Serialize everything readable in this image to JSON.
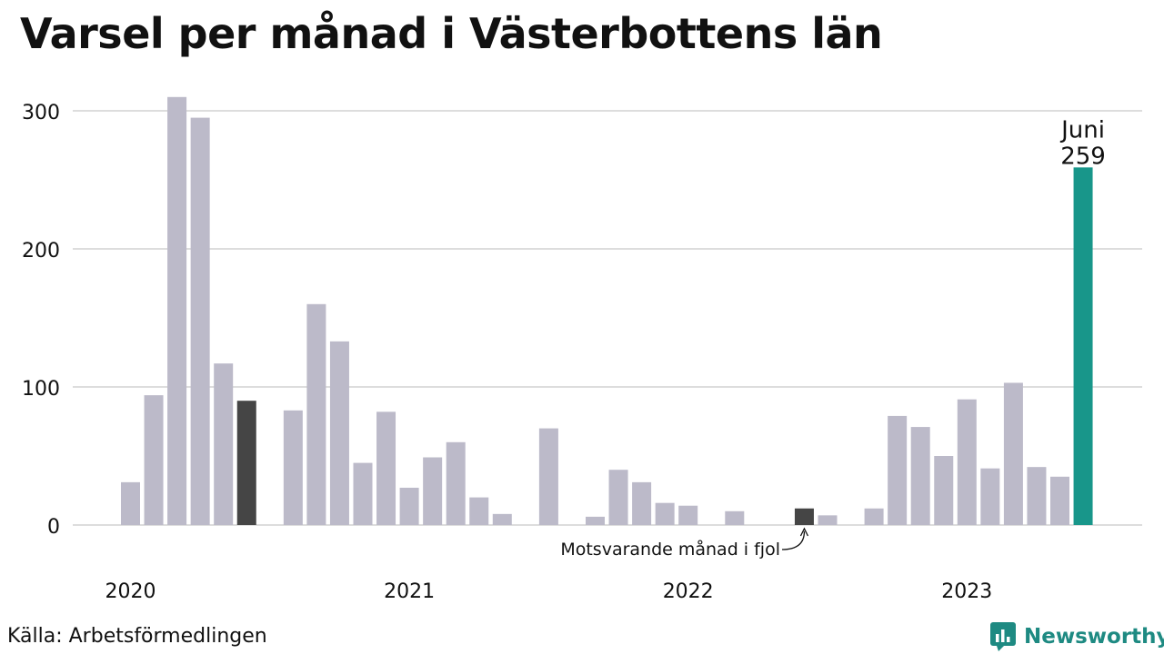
{
  "title": "Varsel per månad i Västerbottens län",
  "source": "Källa: Arbetsförmedlingen",
  "brand": {
    "name": "Newsworthy",
    "icon": "newsworthy-logo-icon"
  },
  "colors": {
    "default_bar": "#bcbac9",
    "highlight_bar": "#18968a",
    "comparison_bar": "#454545",
    "grid": "#dddddd",
    "brand": "#1e8a82"
  },
  "chart_data": {
    "type": "bar",
    "ylim": [
      0,
      320
    ],
    "yticks": [
      0,
      100,
      200,
      300
    ],
    "grid": true,
    "year_labels": [
      {
        "label": "2020",
        "index": 0
      },
      {
        "label": "2021",
        "index": 12
      },
      {
        "label": "2022",
        "index": 24
      },
      {
        "label": "2023",
        "index": 36
      }
    ],
    "months": [
      "2020-01",
      "2020-02",
      "2020-03",
      "2020-04",
      "2020-05",
      "2020-06",
      "2020-07",
      "2020-08",
      "2020-09",
      "2020-10",
      "2020-11",
      "2020-12",
      "2021-01",
      "2021-02",
      "2021-03",
      "2021-04",
      "2021-05",
      "2021-06",
      "2021-07",
      "2021-08",
      "2021-09",
      "2021-10",
      "2021-11",
      "2021-12",
      "2022-01",
      "2022-02",
      "2022-03",
      "2022-04",
      "2022-05",
      "2022-06",
      "2022-07",
      "2022-08",
      "2022-09",
      "2022-10",
      "2022-11",
      "2022-12",
      "2023-01",
      "2023-02",
      "2023-03",
      "2023-04",
      "2023-05",
      "2023-06"
    ],
    "values": [
      31,
      94,
      310,
      295,
      117,
      90,
      0,
      83,
      160,
      133,
      45,
      82,
      27,
      49,
      60,
      20,
      8,
      0,
      70,
      0,
      6,
      40,
      31,
      16,
      14,
      0,
      10,
      0,
      0,
      12,
      7,
      0,
      12,
      79,
      71,
      50,
      91,
      41,
      103,
      42,
      35,
      259
    ],
    "highlight_index": 41,
    "highlight_label": "Juni",
    "highlight_value_label": "259",
    "comparison_indices": [
      5,
      29
    ],
    "annotation": {
      "text": "Motsvarande månad i fjol",
      "target_index": 29
    }
  }
}
